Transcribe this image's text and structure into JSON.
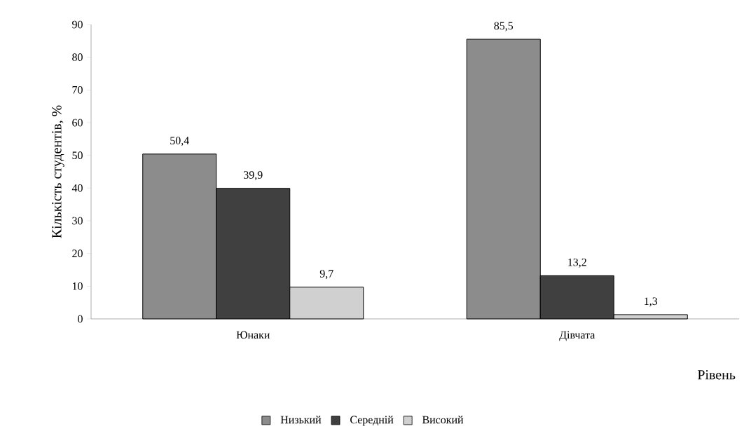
{
  "chart_data": {
    "type": "bar",
    "categories": [
      "Юнаки",
      "Дівчата"
    ],
    "series": [
      {
        "name": "Низький",
        "color": "#8c8c8c",
        "values": [
          50.4,
          85.5
        ],
        "value_labels": [
          "50,4",
          "85,5"
        ]
      },
      {
        "name": "Середній",
        "color": "#404040",
        "values": [
          39.9,
          13.2
        ],
        "value_labels": [
          "39,9",
          "13,2"
        ]
      },
      {
        "name": "Високий",
        "color": "#d0d0d0",
        "values": [
          9.7,
          1.3
        ],
        "value_labels": [
          "9,7",
          "1,3"
        ]
      }
    ],
    "ylim": [
      0,
      90
    ],
    "yticks": [
      0,
      10,
      20,
      30,
      40,
      50,
      60,
      70,
      80,
      90
    ],
    "xlabel": "Рівень",
    "ylabel": "Кількість студентів, %",
    "legend": "bottom",
    "grid": false
  }
}
